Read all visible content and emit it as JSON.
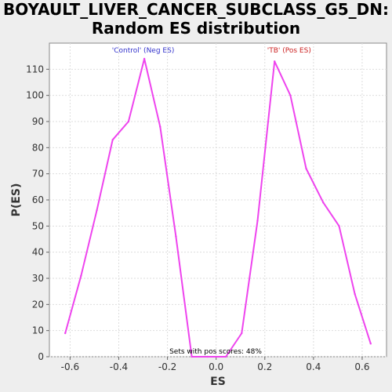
{
  "chart_data": {
    "type": "line",
    "title_line1": "BOYAULT_LIVER_CANCER_SUBCLASS_G5_DN:",
    "title_line2": "Random ES distribution",
    "xlabel": "ES",
    "ylabel": "P(ES)",
    "xlim": [
      -0.685,
      0.7
    ],
    "ylim": [
      0,
      120
    ],
    "x_ticks": [
      -0.6,
      -0.4,
      -0.2,
      0.0,
      0.2,
      0.4,
      0.6
    ],
    "x_tick_labels": [
      "-0.6",
      "-0.4",
      "-0.2",
      "0.0",
      "0.2",
      "0.4",
      "0.6"
    ],
    "y_ticks": [
      0,
      10,
      20,
      30,
      40,
      50,
      60,
      70,
      80,
      90,
      100,
      110
    ],
    "y_tick_labels": [
      "0",
      "10",
      "20",
      "30",
      "40",
      "50",
      "60",
      "70",
      "80",
      "90",
      "100",
      "110"
    ],
    "grid": true,
    "series": [
      {
        "color": "#ee44ee",
        "x": [
          -0.62,
          -0.555,
          -0.49,
          -0.425,
          -0.36,
          -0.295,
          -0.23,
          -0.165,
          -0.1,
          -0.035,
          0.04,
          0.105,
          0.17,
          0.24,
          0.305,
          0.37,
          0.44,
          0.505,
          0.57,
          0.635
        ],
        "y": [
          9,
          31,
          56,
          83,
          90,
          114,
          88,
          46,
          0,
          0,
          0,
          9,
          52,
          113,
          100,
          72,
          59,
          50,
          24,
          5
        ]
      }
    ],
    "annotations": {
      "neg": {
        "text": "'Control' (Neg ES)",
        "color": "#3333cc",
        "x": -0.3
      },
      "pos": {
        "text": "'TB' (Pos ES)",
        "color": "#cc2222",
        "x": 0.3
      },
      "footer": "Sets with pos scores: 48%"
    }
  }
}
